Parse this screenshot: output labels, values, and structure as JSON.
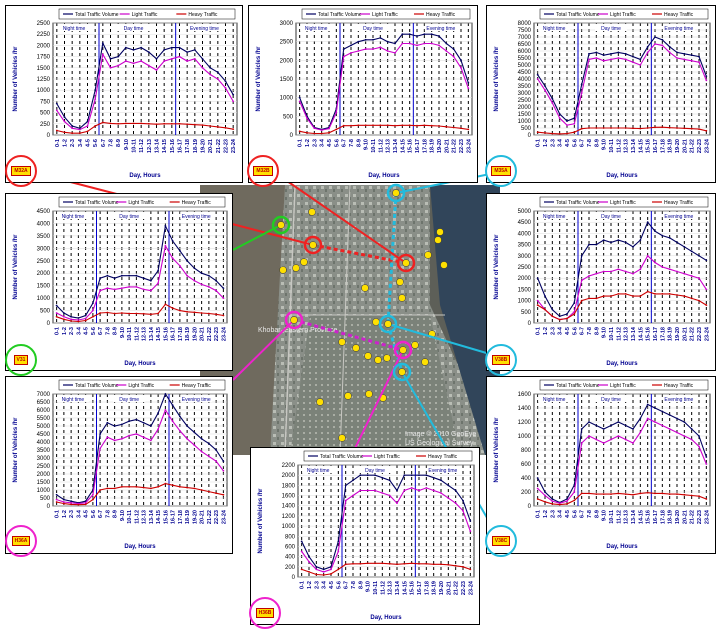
{
  "hours": [
    "0-1",
    "1-2",
    "2-3",
    "3-4",
    "4-5",
    "5-6",
    "6-7",
    "7-8",
    "8-9",
    "9-10",
    "10-11",
    "11-12",
    "12-13",
    "13-14",
    "14-15",
    "15-16",
    "16-17",
    "17-18",
    "18-19",
    "19-20",
    "20-21",
    "21-22",
    "22-23",
    "23-24"
  ],
  "legend": [
    "Total Traffic Volume",
    "Light Traffic",
    "Heavy Traffic"
  ],
  "periods": [
    "Night time",
    "Day time",
    "Evening time"
  ],
  "xlabel": "Day, Hours",
  "ylabel": "Number of Vehicles /hr",
  "colors": {
    "total": "#000060",
    "light": "#cc00cc",
    "heavy": "#cc0000",
    "axis": "#0000cc",
    "tick": "#000090"
  },
  "map": {
    "place_label": "Khobar, Eastern Province",
    "credit": "Image © 2010 GeoEye",
    "credit2": "US Geological Survey"
  },
  "chart_data": [
    {
      "id": "M32A",
      "type": "line",
      "tag_label": "M32A",
      "tag_color": "#ee2222",
      "ylim": [
        0,
        2500
      ],
      "yticks": [
        0,
        250,
        500,
        750,
        1000,
        1250,
        1500,
        1750,
        2000,
        2250,
        2500
      ],
      "series": [
        {
          "key": "total",
          "values": [
            700,
            400,
            200,
            150,
            300,
            1000,
            2050,
            1700,
            1750,
            1950,
            1900,
            1950,
            1850,
            1700,
            1900,
            1950,
            1950,
            1850,
            1900,
            1700,
            1500,
            1400,
            1200,
            900
          ]
        },
        {
          "key": "light",
          "values": [
            550,
            300,
            150,
            120,
            200,
            800,
            1800,
            1500,
            1550,
            1650,
            1600,
            1650,
            1550,
            1450,
            1650,
            1700,
            1750,
            1650,
            1700,
            1500,
            1350,
            1250,
            1050,
            750
          ]
        },
        {
          "key": "heavy",
          "values": [
            100,
            60,
            40,
            40,
            80,
            200,
            280,
            260,
            250,
            260,
            260,
            260,
            250,
            240,
            250,
            250,
            250,
            240,
            230,
            220,
            200,
            180,
            160,
            130
          ]
        }
      ]
    },
    {
      "id": "M32B",
      "type": "line",
      "tag_label": "M32B",
      "tag_color": "#ee2222",
      "ylim": [
        0,
        3000
      ],
      "yticks": [
        0,
        500,
        1000,
        1500,
        2000,
        2500,
        3000
      ],
      "series": [
        {
          "key": "total",
          "values": [
            1000,
            500,
            200,
            150,
            200,
            700,
            2300,
            2400,
            2500,
            2550,
            2550,
            2600,
            2500,
            2450,
            2700,
            2700,
            2650,
            2700,
            2700,
            2650,
            2450,
            2300,
            2000,
            1400
          ]
        },
        {
          "key": "light",
          "values": [
            900,
            450,
            180,
            130,
            170,
            600,
            2100,
            2200,
            2250,
            2300,
            2300,
            2350,
            2250,
            2200,
            2450,
            2450,
            2400,
            2450,
            2450,
            2400,
            2250,
            2100,
            1800,
            1250
          ]
        },
        {
          "key": "heavy",
          "values": [
            100,
            60,
            40,
            40,
            60,
            150,
            250,
            250,
            260,
            260,
            260,
            260,
            260,
            250,
            260,
            260,
            250,
            260,
            250,
            240,
            220,
            200,
            180,
            150
          ]
        }
      ]
    },
    {
      "id": "M35A",
      "type": "line",
      "tag_label": "M35A",
      "tag_color": "#22bbdd",
      "ylim": [
        0,
        8000
      ],
      "yticks": [
        0,
        500,
        1000,
        1500,
        2000,
        2500,
        3000,
        3500,
        4000,
        4500,
        5000,
        5500,
        6000,
        6500,
        7000,
        7500,
        8000
      ],
      "series": [
        {
          "key": "total",
          "values": [
            4300,
            3500,
            2600,
            1500,
            1000,
            1200,
            3600,
            5800,
            5900,
            5700,
            5800,
            5900,
            5800,
            5600,
            5400,
            6300,
            7000,
            6800,
            6300,
            5900,
            5800,
            5700,
            5600,
            4200
          ]
        },
        {
          "key": "light",
          "values": [
            4000,
            3200,
            2300,
            1200,
            700,
            800,
            3000,
            5400,
            5500,
            5300,
            5400,
            5500,
            5400,
            5200,
            5000,
            5900,
            6500,
            6400,
            5900,
            5500,
            5400,
            5300,
            5200,
            3900
          ]
        },
        {
          "key": "heavy",
          "values": [
            200,
            150,
            100,
            80,
            100,
            200,
            450,
            500,
            500,
            500,
            500,
            500,
            500,
            480,
            460,
            500,
            550,
            560,
            520,
            500,
            480,
            450,
            420,
            300
          ]
        }
      ]
    },
    {
      "id": "V31",
      "type": "line",
      "tag_label": "V31",
      "tag_color": "#22cc22",
      "ylim": [
        0,
        4500
      ],
      "yticks": [
        0,
        500,
        1000,
        1500,
        2000,
        2500,
        3000,
        3500,
        4000,
        4500
      ],
      "series": [
        {
          "key": "total",
          "values": [
            700,
            400,
            250,
            200,
            300,
            800,
            1800,
            1900,
            1800,
            1900,
            1900,
            1900,
            1800,
            1700,
            2100,
            3900,
            3300,
            2900,
            2500,
            2200,
            2000,
            1900,
            1700,
            1400
          ]
        },
        {
          "key": "light",
          "values": [
            400,
            250,
            150,
            120,
            180,
            500,
            1300,
            1400,
            1350,
            1400,
            1450,
            1450,
            1350,
            1300,
            1600,
            3100,
            2600,
            2300,
            1900,
            1700,
            1550,
            1450,
            1300,
            1000
          ]
        },
        {
          "key": "heavy",
          "values": [
            250,
            150,
            80,
            60,
            100,
            250,
            400,
            420,
            380,
            400,
            380,
            380,
            370,
            350,
            380,
            750,
            600,
            500,
            450,
            430,
            400,
            380,
            350,
            300
          ]
        }
      ]
    },
    {
      "id": "V38B",
      "type": "line",
      "tag_label": "V38B",
      "tag_color": "#22bbdd",
      "ylim": [
        0,
        5000
      ],
      "yticks": [
        0,
        500,
        1000,
        1500,
        2000,
        2500,
        3000,
        3500,
        4000,
        4500,
        5000
      ],
      "series": [
        {
          "key": "total",
          "values": [
            2000,
            1200,
            600,
            300,
            400,
            900,
            3000,
            3500,
            3500,
            3700,
            3600,
            3700,
            3600,
            3400,
            3700,
            4500,
            4100,
            3900,
            3800,
            3600,
            3400,
            3200,
            3000,
            2800
          ]
        },
        {
          "key": "light",
          "values": [
            1000,
            600,
            300,
            150,
            200,
            500,
            1900,
            2100,
            2200,
            2300,
            2300,
            2400,
            2300,
            2200,
            2400,
            3000,
            2700,
            2500,
            2400,
            2300,
            2200,
            2100,
            2000,
            1500
          ]
        },
        {
          "key": "heavy",
          "values": [
            800,
            600,
            300,
            150,
            200,
            400,
            1000,
            1100,
            1100,
            1200,
            1200,
            1300,
            1300,
            1200,
            1200,
            1400,
            1300,
            1300,
            1300,
            1250,
            1200,
            1100,
            1000,
            800
          ]
        }
      ]
    },
    {
      "id": "H36A",
      "type": "line",
      "tag_label": "H36A",
      "tag_color": "#ee22cc",
      "ylim": [
        0,
        7000
      ],
      "yticks": [
        0,
        500,
        1000,
        1500,
        2000,
        2500,
        3000,
        3500,
        4000,
        4500,
        5000,
        5500,
        6000,
        6500,
        7000
      ],
      "series": [
        {
          "key": "total",
          "values": [
            700,
            400,
            300,
            200,
            300,
            1000,
            4500,
            5200,
            5000,
            5100,
            5300,
            5400,
            5200,
            5000,
            5800,
            7000,
            6300,
            5600,
            5000,
            4600,
            4200,
            3900,
            3500,
            2800
          ]
        },
        {
          "key": "light",
          "values": [
            400,
            250,
            200,
            150,
            200,
            700,
            3600,
            4300,
            4100,
            4200,
            4400,
            4500,
            4300,
            4100,
            4800,
            6000,
            5300,
            4700,
            4200,
            3800,
            3400,
            3100,
            2800,
            2200
          ]
        },
        {
          "key": "heavy",
          "values": [
            250,
            150,
            100,
            80,
            100,
            400,
            1000,
            1100,
            1100,
            1200,
            1200,
            1200,
            1150,
            1100,
            1200,
            1400,
            1300,
            1200,
            1150,
            1100,
            1000,
            900,
            800,
            700
          ]
        }
      ]
    },
    {
      "id": "H36B",
      "type": "line",
      "tag_label": "H36B",
      "tag_color": "#ee22cc",
      "ylim": [
        0,
        2200
      ],
      "yticks": [
        0,
        200,
        400,
        600,
        800,
        1000,
        1200,
        1400,
        1600,
        1800,
        2000,
        2200
      ],
      "series": [
        {
          "key": "total",
          "values": [
            700,
            400,
            200,
            150,
            200,
            700,
            1800,
            1900,
            2000,
            2000,
            2000,
            1950,
            1900,
            1700,
            2000,
            2000,
            2000,
            2000,
            1950,
            1900,
            1800,
            1700,
            1500,
            1100
          ]
        },
        {
          "key": "light",
          "values": [
            500,
            300,
            150,
            100,
            150,
            500,
            1500,
            1600,
            1700,
            1700,
            1700,
            1650,
            1600,
            1450,
            1700,
            1750,
            1700,
            1750,
            1700,
            1650,
            1550,
            1450,
            1300,
            900
          ]
        },
        {
          "key": "heavy",
          "values": [
            150,
            100,
            50,
            40,
            60,
            150,
            250,
            260,
            260,
            270,
            270,
            270,
            260,
            250,
            260,
            270,
            260,
            260,
            250,
            250,
            240,
            220,
            200,
            150
          ]
        }
      ]
    },
    {
      "id": "V38C",
      "type": "line",
      "tag_label": "V38C",
      "tag_color": "#22bbdd",
      "ylim": [
        0,
        1600
      ],
      "yticks": [
        0,
        200,
        400,
        600,
        800,
        1000,
        1200,
        1400,
        1600
      ],
      "series": [
        {
          "key": "total",
          "values": [
            400,
            200,
            100,
            50,
            100,
            300,
            1100,
            1200,
            1150,
            1100,
            1150,
            1200,
            1150,
            1100,
            1250,
            1450,
            1400,
            1350,
            1300,
            1250,
            1200,
            1100,
            1000,
            700
          ]
        },
        {
          "key": "light",
          "values": [
            250,
            150,
            70,
            40,
            70,
            200,
            900,
            1000,
            950,
            900,
            950,
            1000,
            950,
            900,
            1050,
            1250,
            1200,
            1150,
            1100,
            1050,
            1000,
            950,
            850,
            600
          ]
        },
        {
          "key": "heavy",
          "values": [
            100,
            60,
            30,
            20,
            30,
            80,
            180,
            180,
            170,
            170,
            170,
            180,
            170,
            160,
            180,
            190,
            180,
            180,
            170,
            170,
            160,
            150,
            140,
            100
          ]
        }
      ]
    }
  ]
}
